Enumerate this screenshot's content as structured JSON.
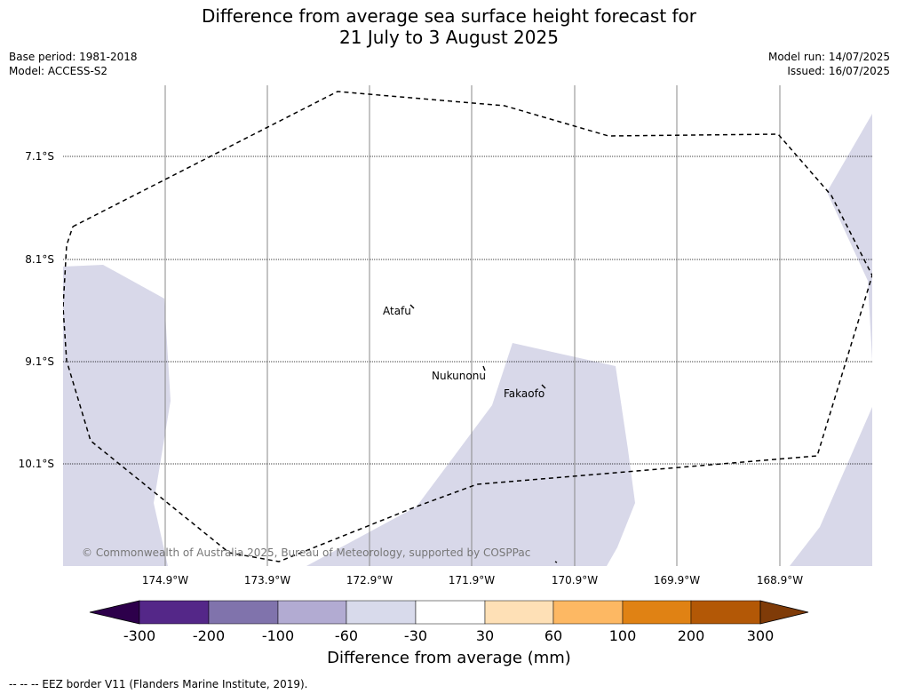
{
  "title": {
    "line1": "Difference from average sea surface height forecast for",
    "line2": "21 July to 3 August 2025"
  },
  "meta_left": {
    "base_period": "Base period: 1981-2018",
    "model": "Model: ACCESS-S2"
  },
  "meta_right": {
    "model_run": "Model run: 14/07/2025",
    "issued": "Issued: 16/07/2025"
  },
  "map": {
    "lat_labels": [
      "7.1°S",
      "8.1°S",
      "9.1°S",
      "10.1°S"
    ],
    "lon_labels": [
      "174.9°W",
      "173.9°W",
      "172.9°W",
      "171.9°W",
      "170.9°W",
      "169.9°W",
      "168.9°W"
    ],
    "places": {
      "atafu": "Atafu",
      "nukunonu": "Nukunonu",
      "fakaofo": "Fakaofo"
    },
    "copyright": "© Commonwealth of Australia 2025, Bureau of Meteorology, supported by COSPPac",
    "anomaly_fill_color": "#d8d8e9",
    "eez_line_color": "#000000"
  },
  "colorbar": {
    "ticks": [
      "-300",
      "-200",
      "-100",
      "-60",
      "-30",
      "30",
      "60",
      "100",
      "200",
      "300"
    ],
    "colors": [
      "#2d004b",
      "#542788",
      "#8073ac",
      "#b2abd2",
      "#d8daeb",
      "#ffffff",
      "#fee0b6",
      "#fdb863",
      "#e08214",
      "#b35806",
      "#7f3b08"
    ],
    "label": "Difference from average (mm)"
  },
  "footnote": "--  --  -- EEZ border V11 (Flanders Marine Institute, 2019)."
}
